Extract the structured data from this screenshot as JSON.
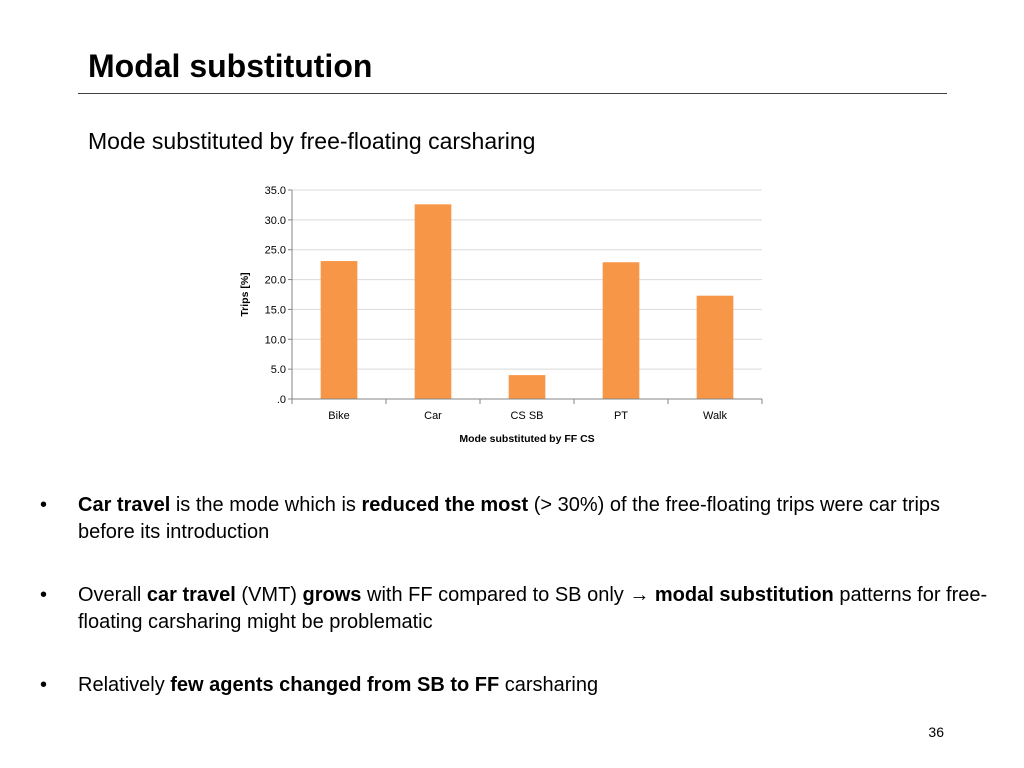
{
  "slide": {
    "title": "Modal substitution",
    "subtitle": "Mode substituted by free-floating carsharing",
    "page_number": "36"
  },
  "bullets": {
    "marker": "•",
    "arrow": "→",
    "b1": {
      "t1": "Car travel",
      "t2": " is the mode which is ",
      "t3": "reduced the most",
      "t4": " (> 30%) of the free-floating trips were car trips before its introduction"
    },
    "b2": {
      "t1": "Overall ",
      "t2": "car travel",
      "t3": " (VMT) ",
      "t4": "grows",
      "t5": " with FF compared to SB only ",
      "t6": " modal substitution",
      "t7": " patterns for free-floating carsharing might be problematic"
    },
    "b3": {
      "t1": "Relatively ",
      "t2": "few agents changed from SB to FF",
      "t3": " carsharing"
    }
  },
  "chart_data": {
    "type": "bar",
    "categories": [
      "Bike",
      "Car",
      "CS SB",
      "PT",
      "Walk"
    ],
    "values": [
      23.1,
      32.6,
      4.0,
      22.9,
      17.3
    ],
    "xlabel": "Mode substituted by FF CS",
    "ylabel": "Trips [%]",
    "ylim": [
      0,
      35
    ],
    "yticks": [
      ".0",
      "5.0",
      "10.0",
      "15.0",
      "20.0",
      "25.0",
      "30.0",
      "35.0"
    ],
    "grid": true,
    "legend": "none",
    "bar_color": "#F79646",
    "grid_color": "#D9D9D9",
    "axis_color": "#868686"
  }
}
